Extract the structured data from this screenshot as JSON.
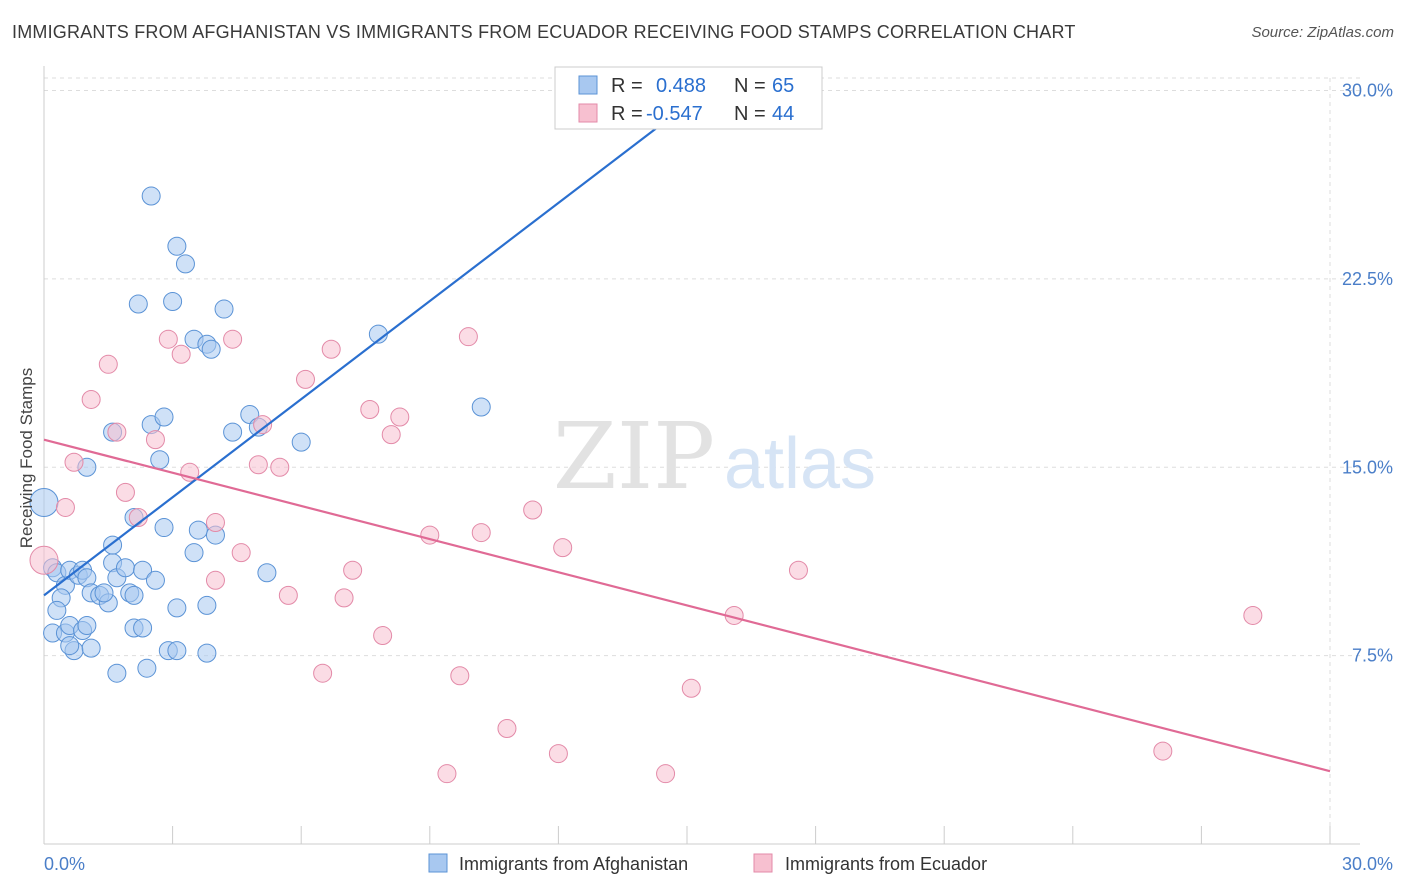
{
  "title": "IMMIGRANTS FROM AFGHANISTAN VS IMMIGRANTS FROM ECUADOR RECEIVING FOOD STAMPS CORRELATION CHART",
  "source": "Source: ZipAtlas.com",
  "watermark": {
    "zip": "ZIP",
    "atlas": "atlas"
  },
  "colors": {
    "blue_fill": "#a8c8f0",
    "blue_stroke": "#5b93d6",
    "blue_line": "#2a6fcf",
    "pink_fill": "#f7c0d0",
    "pink_stroke": "#e38aa8",
    "pink_line": "#e06a95",
    "tick_text": "#4a7ec8",
    "grid": "#dddddd"
  },
  "stats": [
    {
      "r_label": "R =",
      "r_value": "0.488",
      "n_label": "N =",
      "n_value": "65"
    },
    {
      "r_label": "R =",
      "r_value": "-0.547",
      "n_label": "N =",
      "n_value": "44"
    }
  ],
  "chart_data": {
    "type": "scatter",
    "title": "IMMIGRANTS FROM AFGHANISTAN VS IMMIGRANTS FROM ECUADOR RECEIVING FOOD STAMPS CORRELATION CHART",
    "xlabel": "",
    "ylabel": "Receiving Food Stamps",
    "xlim": [
      0,
      30
    ],
    "ylim": [
      0,
      30.5
    ],
    "x_tick_labels": [
      "0.0%",
      "30.0%"
    ],
    "y_ticks": [
      7.5,
      15.0,
      22.5,
      30.0
    ],
    "y_tick_labels": [
      "7.5%",
      "15.0%",
      "22.5%",
      "30.0%"
    ],
    "grid": true,
    "legend_position": "bottom",
    "series": [
      {
        "name": "Immigrants from Afghanistan",
        "color": "#a8c8f0",
        "points": [
          [
            0.0,
            13.6
          ],
          [
            0.2,
            11.0
          ],
          [
            0.3,
            10.8
          ],
          [
            0.5,
            10.3
          ],
          [
            0.6,
            10.9
          ],
          [
            0.8,
            10.7
          ],
          [
            0.9,
            10.9
          ],
          [
            1.0,
            10.6
          ],
          [
            1.1,
            10.0
          ],
          [
            1.3,
            9.9
          ],
          [
            1.5,
            9.6
          ],
          [
            1.4,
            10.0
          ],
          [
            1.6,
            11.2
          ],
          [
            1.7,
            10.6
          ],
          [
            1.9,
            11.0
          ],
          [
            2.0,
            10.0
          ],
          [
            2.1,
            9.9
          ],
          [
            2.3,
            10.9
          ],
          [
            0.4,
            9.8
          ],
          [
            0.2,
            8.4
          ],
          [
            0.5,
            8.4
          ],
          [
            0.6,
            8.7
          ],
          [
            0.7,
            7.7
          ],
          [
            0.6,
            7.9
          ],
          [
            0.9,
            8.5
          ],
          [
            1.0,
            8.7
          ],
          [
            1.1,
            7.8
          ],
          [
            1.7,
            6.8
          ],
          [
            2.1,
            8.6
          ],
          [
            2.3,
            8.6
          ],
          [
            2.4,
            7.0
          ],
          [
            2.9,
            7.7
          ],
          [
            3.1,
            7.7
          ],
          [
            3.8,
            7.6
          ],
          [
            3.1,
            9.4
          ],
          [
            3.8,
            9.5
          ],
          [
            1.0,
            15.0
          ],
          [
            1.6,
            16.4
          ],
          [
            2.5,
            16.7
          ],
          [
            2.7,
            15.3
          ],
          [
            2.8,
            17.0
          ],
          [
            2.1,
            13.0
          ],
          [
            2.8,
            12.6
          ],
          [
            3.6,
            12.5
          ],
          [
            3.5,
            11.6
          ],
          [
            2.6,
            10.5
          ],
          [
            4.4,
            16.4
          ],
          [
            4.8,
            17.1
          ],
          [
            5.0,
            16.6
          ],
          [
            5.2,
            10.8
          ],
          [
            6.0,
            16.0
          ],
          [
            2.5,
            25.8
          ],
          [
            3.1,
            23.8
          ],
          [
            3.3,
            23.1
          ],
          [
            2.2,
            21.5
          ],
          [
            3.0,
            21.6
          ],
          [
            4.2,
            21.3
          ],
          [
            3.5,
            20.1
          ],
          [
            3.8,
            19.9
          ],
          [
            3.9,
            19.7
          ],
          [
            7.8,
            20.3
          ],
          [
            10.2,
            17.4
          ],
          [
            1.6,
            11.9
          ],
          [
            0.3,
            9.3
          ],
          [
            4.0,
            12.3
          ]
        ]
      },
      {
        "name": "Immigrants from Ecuador",
        "color": "#f7c0d0",
        "points": [
          [
            0.0,
            11.3
          ],
          [
            0.5,
            13.4
          ],
          [
            0.7,
            15.2
          ],
          [
            1.1,
            17.7
          ],
          [
            1.5,
            19.1
          ],
          [
            1.7,
            16.4
          ],
          [
            1.9,
            14.0
          ],
          [
            2.2,
            13.0
          ],
          [
            2.6,
            16.1
          ],
          [
            2.9,
            20.1
          ],
          [
            3.2,
            19.5
          ],
          [
            3.4,
            14.8
          ],
          [
            4.0,
            10.5
          ],
          [
            4.0,
            12.8
          ],
          [
            4.4,
            20.1
          ],
          [
            4.6,
            11.6
          ],
          [
            5.0,
            15.1
          ],
          [
            5.1,
            16.7
          ],
          [
            5.5,
            15.0
          ],
          [
            5.7,
            9.9
          ],
          [
            6.1,
            18.5
          ],
          [
            6.5,
            6.8
          ],
          [
            6.7,
            19.7
          ],
          [
            7.0,
            9.8
          ],
          [
            7.2,
            10.9
          ],
          [
            7.6,
            17.3
          ],
          [
            7.9,
            8.3
          ],
          [
            8.1,
            16.3
          ],
          [
            8.3,
            17.0
          ],
          [
            9.0,
            12.3
          ],
          [
            9.4,
            2.8
          ],
          [
            9.7,
            6.7
          ],
          [
            9.9,
            20.2
          ],
          [
            10.2,
            12.4
          ],
          [
            10.8,
            4.6
          ],
          [
            11.4,
            13.3
          ],
          [
            12.0,
            3.6
          ],
          [
            12.1,
            11.8
          ],
          [
            14.5,
            2.8
          ],
          [
            15.1,
            6.2
          ],
          [
            16.1,
            9.1
          ],
          [
            17.6,
            10.9
          ],
          [
            26.1,
            3.7
          ],
          [
            28.2,
            9.1
          ]
        ]
      }
    ],
    "trend_lines": [
      {
        "series": "Immigrants from Afghanistan",
        "x": [
          0,
          14.9
        ],
        "y": [
          9.9,
          29.3
        ]
      },
      {
        "series": "Immigrants from Ecuador",
        "x": [
          0,
          30
        ],
        "y": [
          16.1,
          2.9
        ]
      }
    ]
  }
}
